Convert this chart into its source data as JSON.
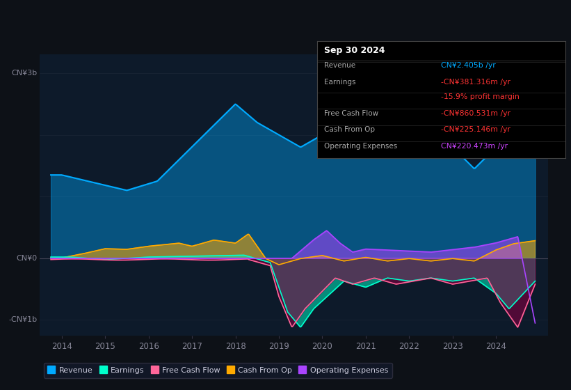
{
  "bg_color": "#0d1117",
  "chart_bg": "#0d1a2a",
  "info_box": {
    "title": "Sep 30 2024",
    "rows": [
      {
        "label": "Revenue",
        "value": "CN¥2.405b /yr",
        "value_color": "#00aaff",
        "label_color": "#aaaaaa",
        "separator": true
      },
      {
        "label": "Earnings",
        "value": "-CN¥381.316m /yr",
        "value_color": "#ff3333",
        "label_color": "#aaaaaa",
        "separator": false
      },
      {
        "label": "",
        "value": "-15.9% profit margin",
        "value_color": "#ff3333",
        "label_color": "#aaaaaa",
        "separator": true
      },
      {
        "label": "Free Cash Flow",
        "value": "-CN¥860.531m /yr",
        "value_color": "#ff3333",
        "label_color": "#aaaaaa",
        "separator": true
      },
      {
        "label": "Cash From Op",
        "value": "-CN¥225.146m /yr",
        "value_color": "#ff3333",
        "label_color": "#aaaaaa",
        "separator": true
      },
      {
        "label": "Operating Expenses",
        "value": "CN¥220.473m /yr",
        "value_color": "#cc44ff",
        "label_color": "#aaaaaa",
        "separator": false
      }
    ]
  },
  "ylim": [
    -1250000000.0,
    3300000000.0
  ],
  "xlim": [
    2013.5,
    2025.2
  ],
  "ytick_positions": [
    -1000000000.0,
    0,
    3000000000.0
  ],
  "ytick_labels": [
    "-CN¥1b",
    "CN¥0",
    "CN¥3b"
  ],
  "xlabel_years": [
    "2014",
    "2015",
    "2016",
    "2017",
    "2018",
    "2019",
    "2020",
    "2021",
    "2022",
    "2023",
    "2024"
  ],
  "grid_lines": [
    -1000000000.0,
    0,
    1000000000.0,
    2000000000.0,
    3000000000.0
  ],
  "colors": {
    "revenue": "#00aaff",
    "earnings": "#00ffcc",
    "fcf": "#ff6699",
    "cashfromop": "#ffaa00",
    "opex": "#aa44ff"
  },
  "legend": [
    {
      "label": "Revenue",
      "color": "#00aaff"
    },
    {
      "label": "Earnings",
      "color": "#00ffcc"
    },
    {
      "label": "Free Cash Flow",
      "color": "#ff6699"
    },
    {
      "label": "Cash From Op",
      "color": "#ffaa00"
    },
    {
      "label": "Operating Expenses",
      "color": "#aa44ff"
    }
  ]
}
